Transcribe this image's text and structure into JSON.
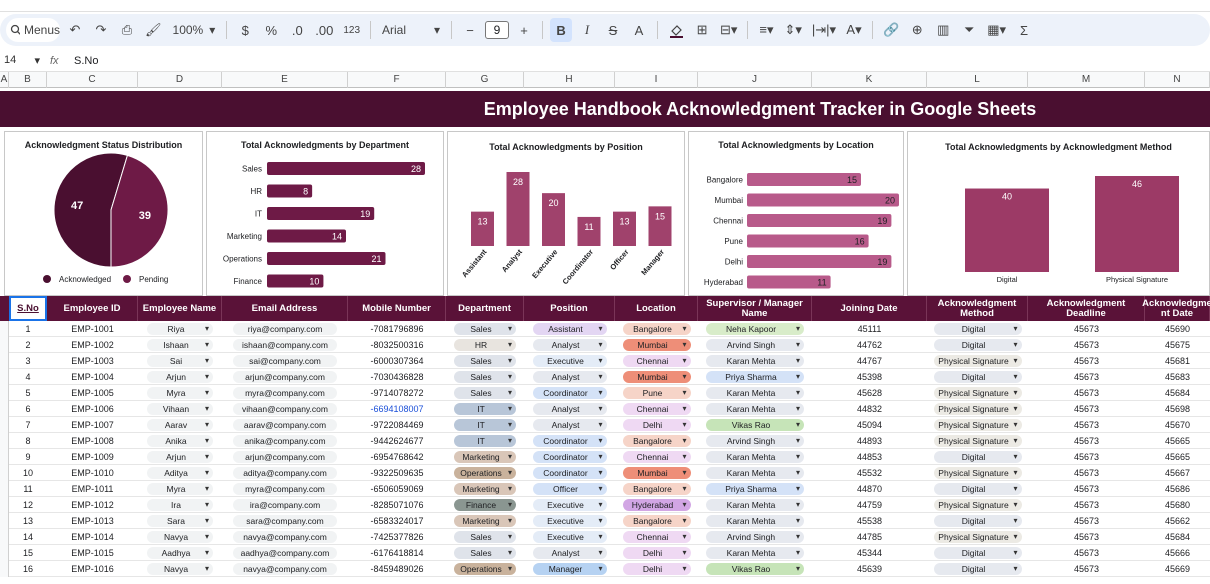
{
  "toolbar": {
    "menus_label": "Menus",
    "zoom": "100%",
    "currency": "$",
    "percent": "%",
    "dec_down": ".0",
    "dec_up": ".00",
    "num_format": "123",
    "font": "Arial",
    "font_size": "9",
    "bold": "B",
    "italic": "I",
    "strike": "S",
    "text_color": "A",
    "sigma": "Σ"
  },
  "formula_bar": {
    "cell_ref": "14",
    "value": "S.No"
  },
  "columns": [
    "A",
    "B",
    "C",
    "D",
    "E",
    "F",
    "G",
    "H",
    "I",
    "J",
    "K",
    "L",
    "M",
    "N"
  ],
  "title": "Employee Handbook Acknowledgment Tracker in Google Sheets",
  "colors": {
    "dark": "#4a0f30",
    "header": "#5a1238",
    "bar": "#6e1a46",
    "pos_bar": "#a0426c",
    "loc_bar": "#b85a8a",
    "method_bar": "#9c3a66",
    "pie_ack": "#4a0f30",
    "pie_pend": "#6e1a46"
  },
  "charts": {
    "status": {
      "title": "Acknowledgment Status Distribution",
      "legend": [
        "Acknowledged",
        "Pending"
      ],
      "chart_data": {
        "type": "pie",
        "labels": [
          "Acknowledged",
          "Pending"
        ],
        "values": [
          47,
          39
        ]
      }
    },
    "department": {
      "title": "Total Acknowledgments by Department",
      "chart_data": {
        "type": "bar",
        "categories": [
          "Sales",
          "HR",
          "IT",
          "Marketing",
          "Operations",
          "Finance"
        ],
        "values": [
          28,
          8,
          19,
          14,
          21,
          10
        ]
      }
    },
    "position": {
      "title": "Total Acknowledgments by Position",
      "chart_data": {
        "type": "bar",
        "categories": [
          "Assistant",
          "Analyst",
          "Executive",
          "Coordinator",
          "Officer",
          "Manager"
        ],
        "values": [
          13,
          28,
          20,
          11,
          13,
          15
        ]
      }
    },
    "location": {
      "title": "Total Acknowledgments by Location",
      "chart_data": {
        "type": "bar",
        "categories": [
          "Bangalore",
          "Mumbai",
          "Chennai",
          "Pune",
          "Delhi",
          "Hyderabad"
        ],
        "values": [
          15,
          20,
          19,
          16,
          19,
          11
        ]
      }
    },
    "method": {
      "title": "Total Acknowledgments by Acknowledgment Method",
      "chart_data": {
        "type": "bar",
        "categories": [
          "Digital",
          "Physical Signature"
        ],
        "values": [
          40,
          46
        ]
      }
    }
  },
  "table": {
    "headers": [
      "S.No",
      "Employee ID",
      "Employee Name",
      "Email Address",
      "Mobile Number",
      "Department",
      "Position",
      "Location",
      "Supervisor / Manager Name",
      "Joining Date",
      "Acknowledgment Method",
      "Acknowledgment Deadline",
      "Acknowledgme nt Date"
    ],
    "rows": [
      [
        "1",
        "EMP-1001",
        "Riya",
        "riya@company.com",
        "-7081796896",
        "Sales",
        "Assistant",
        "Bangalore",
        "Neha Kapoor",
        "45111",
        "Digital",
        "45673",
        "45690"
      ],
      [
        "2",
        "EMP-1002",
        "Ishaan",
        "ishaan@company.com",
        "-8032500316",
        "HR",
        "Analyst",
        "Mumbai",
        "Arvind Singh",
        "44762",
        "Digital",
        "45673",
        "45675"
      ],
      [
        "3",
        "EMP-1003",
        "Sai",
        "sai@company.com",
        "-6000307364",
        "Sales",
        "Executive",
        "Chennai",
        "Karan Mehta",
        "44767",
        "Physical Signature",
        "45673",
        "45681"
      ],
      [
        "4",
        "EMP-1004",
        "Arjun",
        "arjun@company.com",
        "-7030436828",
        "Sales",
        "Analyst",
        "Mumbai",
        "Priya Sharma",
        "45398",
        "Digital",
        "45673",
        "45683"
      ],
      [
        "5",
        "EMP-1005",
        "Myra",
        "myra@company.com",
        "-9714078272",
        "Sales",
        "Coordinator",
        "Pune",
        "Karan Mehta",
        "45628",
        "Physical Signature",
        "45673",
        "45684"
      ],
      [
        "6",
        "EMP-1006",
        "Vihaan",
        "vihaan@company.com",
        "-6694108007",
        "IT",
        "Analyst",
        "Chennai",
        "Karan Mehta",
        "44832",
        "Physical Signature",
        "45673",
        "45698"
      ],
      [
        "7",
        "EMP-1007",
        "Aarav",
        "aarav@company.com",
        "-9722084469",
        "IT",
        "Analyst",
        "Delhi",
        "Vikas Rao",
        "45094",
        "Physical Signature",
        "45673",
        "45670"
      ],
      [
        "8",
        "EMP-1008",
        "Anika",
        "anika@company.com",
        "-9442624677",
        "IT",
        "Coordinator",
        "Bangalore",
        "Arvind Singh",
        "44893",
        "Physical Signature",
        "45673",
        "45665"
      ],
      [
        "9",
        "EMP-1009",
        "Arjun",
        "arjun@company.com",
        "-6954768642",
        "Marketing",
        "Coordinator",
        "Chennai",
        "Karan Mehta",
        "44853",
        "Digital",
        "45673",
        "45665"
      ],
      [
        "10",
        "EMP-1010",
        "Aditya",
        "aditya@company.com",
        "-9322509635",
        "Operations",
        "Coordinator",
        "Mumbai",
        "Karan Mehta",
        "45532",
        "Physical Signature",
        "45673",
        "45667"
      ],
      [
        "11",
        "EMP-1011",
        "Myra",
        "myra@company.com",
        "-6506059069",
        "Marketing",
        "Officer",
        "Bangalore",
        "Priya Sharma",
        "44870",
        "Digital",
        "45673",
        "45686"
      ],
      [
        "12",
        "EMP-1012",
        "Ira",
        "ira@company.com",
        "-8285071076",
        "Finance",
        "Executive",
        "Hyderabad",
        "Karan Mehta",
        "44759",
        "Physical Signature",
        "45673",
        "45680"
      ],
      [
        "13",
        "EMP-1013",
        "Sara",
        "sara@company.com",
        "-6583324017",
        "Marketing",
        "Executive",
        "Bangalore",
        "Karan Mehta",
        "45538",
        "Digital",
        "45673",
        "45662"
      ],
      [
        "14",
        "EMP-1014",
        "Navya",
        "navya@company.com",
        "-7425377826",
        "Sales",
        "Executive",
        "Chennai",
        "Arvind Singh",
        "44785",
        "Physical Signature",
        "45673",
        "45684"
      ],
      [
        "15",
        "EMP-1015",
        "Aadhya",
        "aadhya@company.com",
        "-6176418814",
        "Sales",
        "Analyst",
        "Delhi",
        "Karan Mehta",
        "45344",
        "Digital",
        "45673",
        "45666"
      ],
      [
        "16",
        "EMP-1016",
        "Navya",
        "navya@company.com",
        "-8459489026",
        "Operations",
        "Manager",
        "Delhi",
        "Vikas Rao",
        "45639",
        "Digital",
        "45673",
        "45669"
      ]
    ]
  }
}
